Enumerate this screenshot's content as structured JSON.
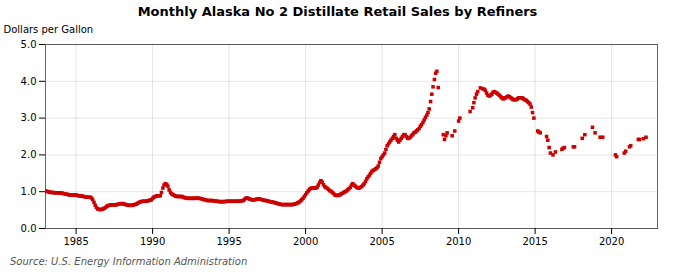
{
  "chart_data": {
    "type": "scatter",
    "title": "Monthly Alaska No 2 Distillate Retail Sales by Refiners",
    "ylabel": "Dollars per Gallon",
    "annotations": [
      "Source: U.S. Energy Information Administration"
    ],
    "color": "#cc0000",
    "marker": "square",
    "grid": true,
    "xlim": [
      1983.0,
      2023.0
    ],
    "ylim": [
      0.0,
      5.0
    ],
    "xticks": [
      1985,
      1990,
      1995,
      2000,
      2005,
      2010,
      2015,
      2020
    ],
    "yticks": [
      {
        "value": 0.0,
        "label": "0.0"
      },
      {
        "value": 1.0,
        "label": "1.0"
      },
      {
        "value": 2.0,
        "label": "2.0"
      },
      {
        "value": 3.0,
        "label": "3.0"
      },
      {
        "value": 4.0,
        "label": "4.0"
      },
      {
        "value": 5.0,
        "label": "5.0"
      }
    ],
    "x": [
      1983.0,
      1983.08,
      1983.17,
      1983.25,
      1983.33,
      1983.42,
      1983.5,
      1983.58,
      1983.67,
      1983.75,
      1983.83,
      1983.92,
      1984.0,
      1984.08,
      1984.17,
      1984.25,
      1984.33,
      1984.42,
      1984.5,
      1984.58,
      1984.67,
      1984.75,
      1984.83,
      1984.92,
      1985.0,
      1985.08,
      1985.17,
      1985.25,
      1985.33,
      1985.42,
      1985.5,
      1985.58,
      1985.67,
      1985.75,
      1985.83,
      1985.92,
      1986.0,
      1986.08,
      1986.17,
      1986.25,
      1986.33,
      1986.42,
      1986.5,
      1986.58,
      1986.67,
      1986.75,
      1986.83,
      1986.92,
      1987.0,
      1987.08,
      1987.17,
      1987.25,
      1987.33,
      1987.42,
      1987.5,
      1987.58,
      1987.67,
      1987.75,
      1987.83,
      1987.92,
      1988.0,
      1988.08,
      1988.17,
      1988.25,
      1988.33,
      1988.42,
      1988.5,
      1988.58,
      1988.67,
      1988.75,
      1988.83,
      1988.92,
      1989.0,
      1989.08,
      1989.17,
      1989.25,
      1989.33,
      1989.42,
      1989.5,
      1989.58,
      1989.67,
      1989.75,
      1989.83,
      1989.92,
      1990.0,
      1990.08,
      1990.17,
      1990.25,
      1990.33,
      1990.42,
      1990.5,
      1990.58,
      1990.67,
      1990.75,
      1990.83,
      1990.92,
      1991.0,
      1991.08,
      1991.17,
      1991.25,
      1991.33,
      1991.42,
      1991.5,
      1991.58,
      1991.67,
      1991.75,
      1991.83,
      1991.92,
      1992.0,
      1992.08,
      1992.17,
      1992.25,
      1992.33,
      1992.42,
      1992.5,
      1992.58,
      1992.67,
      1992.75,
      1992.83,
      1992.92,
      1993.0,
      1993.08,
      1993.17,
      1993.25,
      1993.33,
      1993.42,
      1993.5,
      1993.58,
      1993.67,
      1993.75,
      1993.83,
      1993.92,
      1994.0,
      1994.08,
      1994.17,
      1994.25,
      1994.33,
      1994.42,
      1994.5,
      1994.58,
      1994.67,
      1994.75,
      1994.83,
      1994.92,
      1995.0,
      1995.08,
      1995.17,
      1995.25,
      1995.33,
      1995.42,
      1995.5,
      1995.58,
      1995.67,
      1995.75,
      1995.83,
      1995.92,
      1996.0,
      1996.08,
      1996.17,
      1996.25,
      1996.33,
      1996.42,
      1996.5,
      1996.58,
      1996.67,
      1996.75,
      1996.83,
      1996.92,
      1997.0,
      1997.08,
      1997.17,
      1997.25,
      1997.33,
      1997.42,
      1997.5,
      1997.58,
      1997.67,
      1997.75,
      1997.83,
      1997.92,
      1998.0,
      1998.08,
      1998.17,
      1998.25,
      1998.33,
      1998.42,
      1998.5,
      1998.58,
      1998.67,
      1998.75,
      1998.83,
      1998.92,
      1999.0,
      1999.08,
      1999.17,
      1999.25,
      1999.33,
      1999.42,
      1999.5,
      1999.58,
      1999.67,
      1999.75,
      1999.83,
      1999.92,
      2000.0,
      2000.08,
      2000.17,
      2000.25,
      2000.33,
      2000.42,
      2000.5,
      2000.58,
      2000.67,
      2000.75,
      2000.83,
      2000.92,
      2001.0,
      2001.08,
      2001.17,
      2001.25,
      2001.33,
      2001.42,
      2001.5,
      2001.58,
      2001.67,
      2001.75,
      2001.83,
      2001.92,
      2002.0,
      2002.08,
      2002.17,
      2002.25,
      2002.33,
      2002.42,
      2002.5,
      2002.58,
      2002.67,
      2002.75,
      2002.83,
      2002.92,
      2003.0,
      2003.08,
      2003.17,
      2003.25,
      2003.33,
      2003.42,
      2003.5,
      2003.58,
      2003.67,
      2003.75,
      2003.83,
      2003.92,
      2004.0,
      2004.08,
      2004.17,
      2004.25,
      2004.33,
      2004.42,
      2004.5,
      2004.58,
      2004.67,
      2004.75,
      2004.83,
      2004.92,
      2005.0,
      2005.08,
      2005.17,
      2005.25,
      2005.33,
      2005.42,
      2005.5,
      2005.58,
      2005.67,
      2005.75,
      2005.83,
      2005.92,
      2006.0,
      2006.08,
      2006.17,
      2006.25,
      2006.33,
      2006.42,
      2006.5,
      2006.58,
      2006.67,
      2006.75,
      2006.83,
      2006.92,
      2007.0,
      2007.08,
      2007.17,
      2007.25,
      2007.33,
      2007.42,
      2007.5,
      2007.58,
      2007.67,
      2007.75,
      2007.83,
      2007.92,
      2008.0,
      2008.08,
      2008.17,
      2008.25,
      2008.33,
      2008.42,
      2008.5,
      2008.58,
      2008.67,
      2009.0,
      2009.08,
      2009.17,
      2009.25,
      2009.58,
      2009.75,
      2010.0,
      2010.08,
      2010.75,
      2010.92,
      2011.0,
      2011.08,
      2011.17,
      2011.25,
      2011.42,
      2011.58,
      2011.67,
      2011.75,
      2011.83,
      2011.92,
      2012.0,
      2012.08,
      2012.17,
      2012.25,
      2012.33,
      2012.42,
      2012.5,
      2012.58,
      2012.67,
      2012.75,
      2012.83,
      2012.92,
      2013.0,
      2013.08,
      2013.17,
      2013.25,
      2013.33,
      2013.42,
      2013.5,
      2013.58,
      2013.67,
      2013.75,
      2013.83,
      2013.92,
      2014.0,
      2014.08,
      2014.17,
      2014.25,
      2014.33,
      2014.42,
      2014.5,
      2014.58,
      2014.67,
      2014.75,
      2014.83,
      2014.92,
      2015.17,
      2015.25,
      2015.33,
      2015.75,
      2015.83,
      2015.92,
      2016.0,
      2016.17,
      2016.33,
      2016.75,
      2016.83,
      2016.92,
      2017.5,
      2017.58,
      2018.08,
      2018.25,
      2018.75,
      2018.92,
      2019.25,
      2019.42,
      2020.25,
      2020.33,
      2020.83,
      2020.92,
      2021.17,
      2021.25,
      2021.75,
      2021.83,
      2022.08,
      2022.25
    ],
    "values": [
      1.02,
      1.01,
      1.0,
      0.99,
      0.98,
      0.98,
      0.98,
      0.97,
      0.97,
      0.97,
      0.97,
      0.97,
      0.97,
      0.96,
      0.95,
      0.94,
      0.93,
      0.93,
      0.92,
      0.91,
      0.91,
      0.91,
      0.91,
      0.91,
      0.91,
      0.9,
      0.89,
      0.89,
      0.88,
      0.88,
      0.87,
      0.86,
      0.85,
      0.85,
      0.85,
      0.85,
      0.83,
      0.79,
      0.71,
      0.63,
      0.57,
      0.53,
      0.52,
      0.51,
      0.52,
      0.53,
      0.55,
      0.57,
      0.6,
      0.62,
      0.63,
      0.64,
      0.64,
      0.64,
      0.64,
      0.64,
      0.65,
      0.66,
      0.67,
      0.67,
      0.68,
      0.67,
      0.66,
      0.65,
      0.64,
      0.63,
      0.63,
      0.63,
      0.63,
      0.64,
      0.65,
      0.66,
      0.68,
      0.7,
      0.72,
      0.73,
      0.74,
      0.74,
      0.74,
      0.74,
      0.75,
      0.76,
      0.77,
      0.78,
      0.82,
      0.85,
      0.87,
      0.88,
      0.89,
      0.89,
      0.89,
      0.98,
      1.1,
      1.18,
      1.22,
      1.2,
      1.15,
      1.05,
      0.98,
      0.94,
      0.92,
      0.9,
      0.88,
      0.87,
      0.87,
      0.87,
      0.87,
      0.87,
      0.85,
      0.84,
      0.83,
      0.82,
      0.82,
      0.82,
      0.82,
      0.82,
      0.82,
      0.82,
      0.82,
      0.83,
      0.82,
      0.82,
      0.81,
      0.8,
      0.79,
      0.78,
      0.77,
      0.76,
      0.76,
      0.76,
      0.76,
      0.76,
      0.75,
      0.75,
      0.74,
      0.74,
      0.73,
      0.73,
      0.73,
      0.73,
      0.73,
      0.73,
      0.74,
      0.74,
      0.74,
      0.74,
      0.74,
      0.74,
      0.74,
      0.74,
      0.74,
      0.74,
      0.74,
      0.75,
      0.75,
      0.76,
      0.79,
      0.82,
      0.83,
      0.82,
      0.8,
      0.79,
      0.78,
      0.78,
      0.78,
      0.79,
      0.8,
      0.81,
      0.8,
      0.79,
      0.78,
      0.77,
      0.76,
      0.76,
      0.75,
      0.74,
      0.73,
      0.72,
      0.72,
      0.71,
      0.7,
      0.69,
      0.68,
      0.67,
      0.66,
      0.65,
      0.65,
      0.65,
      0.65,
      0.65,
      0.65,
      0.65,
      0.65,
      0.65,
      0.65,
      0.66,
      0.67,
      0.68,
      0.7,
      0.72,
      0.75,
      0.78,
      0.82,
      0.87,
      0.92,
      0.97,
      1.02,
      1.06,
      1.09,
      1.1,
      1.1,
      1.1,
      1.1,
      1.12,
      1.18,
      1.25,
      1.3,
      1.26,
      1.19,
      1.14,
      1.11,
      1.09,
      1.06,
      1.03,
      1.01,
      0.98,
      0.95,
      0.91,
      0.9,
      0.9,
      0.9,
      0.92,
      0.94,
      0.96,
      0.98,
      1.0,
      1.02,
      1.05,
      1.08,
      1.12,
      1.18,
      1.22,
      1.18,
      1.15,
      1.12,
      1.1,
      1.1,
      1.12,
      1.14,
      1.18,
      1.22,
      1.28,
      1.35,
      1.4,
      1.45,
      1.5,
      1.55,
      1.58,
      1.6,
      1.62,
      1.65,
      1.7,
      1.8,
      1.9,
      1.95,
      2.0,
      2.05,
      2.15,
      2.25,
      2.3,
      2.35,
      2.4,
      2.45,
      2.5,
      2.55,
      2.45,
      2.4,
      2.35,
      2.4,
      2.45,
      2.5,
      2.55,
      2.55,
      2.5,
      2.45,
      2.45,
      2.48,
      2.52,
      2.55,
      2.6,
      2.62,
      2.65,
      2.68,
      2.72,
      2.78,
      2.82,
      2.88,
      2.95,
      3.02,
      3.08,
      3.15,
      3.25,
      3.45,
      3.65,
      3.85,
      4.05,
      4.22,
      4.27,
      3.83,
      2.55,
      2.42,
      2.52,
      2.6,
      2.52,
      2.65,
      2.92,
      3.0,
      3.18,
      3.28,
      3.42,
      3.55,
      3.65,
      3.72,
      3.82,
      3.8,
      3.78,
      3.75,
      3.68,
      3.62,
      3.6,
      3.62,
      3.65,
      3.7,
      3.72,
      3.7,
      3.68,
      3.65,
      3.62,
      3.58,
      3.55,
      3.52,
      3.55,
      3.55,
      3.58,
      3.6,
      3.58,
      3.55,
      3.52,
      3.5,
      3.5,
      3.5,
      3.52,
      3.55,
      3.55,
      3.55,
      3.55,
      3.52,
      3.5,
      3.48,
      3.45,
      3.42,
      3.38,
      3.3,
      3.15,
      3.0,
      2.65,
      2.62,
      2.6,
      2.5,
      2.4,
      2.2,
      2.05,
      2.0,
      2.08,
      2.15,
      2.18,
      2.2,
      2.22,
      2.22,
      2.45,
      2.55,
      2.75,
      2.6,
      2.48,
      2.48,
      2.0,
      1.95,
      2.05,
      2.1,
      2.22,
      2.25,
      2.42,
      2.42,
      2.44,
      2.48
    ]
  }
}
